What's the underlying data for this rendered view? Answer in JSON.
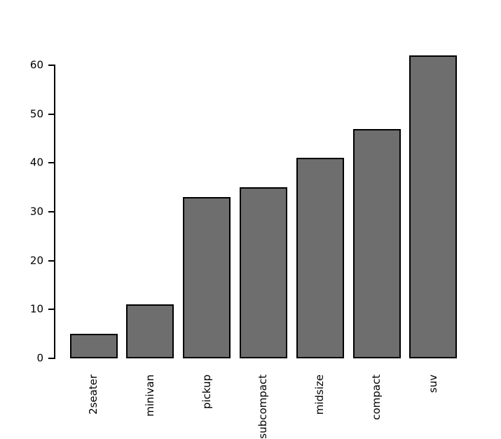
{
  "chart_data": {
    "type": "bar",
    "title": "",
    "xlabel": "",
    "ylabel": "",
    "categories": [
      "2seater",
      "minivan",
      "pickup",
      "subcompact",
      "midsize",
      "compact",
      "suv"
    ],
    "values": [
      5,
      11,
      33,
      35,
      41,
      47,
      62
    ],
    "yticks": [
      0,
      10,
      20,
      30,
      40,
      50,
      60
    ],
    "ylim": [
      0,
      62
    ],
    "grid": false,
    "legend": "none",
    "x_tick_label_rotation_deg": 90,
    "bar_fill_color": "#6e6e6e",
    "bar_border_color": "#000000",
    "axis_color": "#000000",
    "text_color": "#000000",
    "background_color": "#ffffff"
  }
}
